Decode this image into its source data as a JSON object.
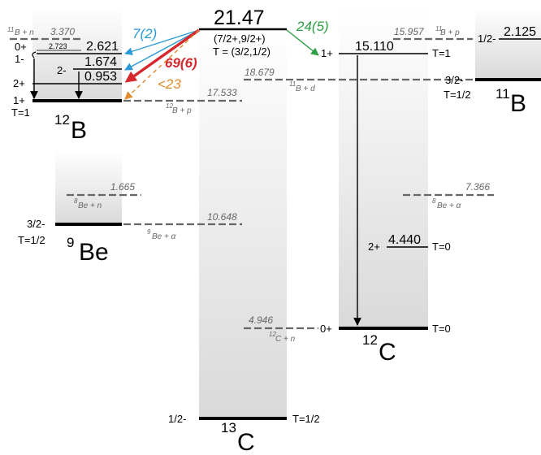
{
  "colors": {
    "blue": "#2a9ad6",
    "red": "#d7282e",
    "orange": "#e08a2c",
    "green": "#2f9e44",
    "dashed": "#666666",
    "level": "#000000",
    "band_top": "#ffffff",
    "band_bottom": "#d9d9d9"
  },
  "icons": {
    "arrowheads": "arrow-head-icon"
  },
  "nuclei": {
    "B12": {
      "mass": "12",
      "symbol": "B"
    },
    "Be9": {
      "mass": "9",
      "symbol": "Be"
    },
    "C13": {
      "mass": "13",
      "symbol": "C"
    },
    "C12": {
      "mass": "12",
      "symbol": "C"
    },
    "B11": {
      "mass": "11",
      "symbol": "B"
    }
  },
  "b12": {
    "thr_n_energy": "3.370",
    "thr_n_label": "B + n",
    "thr_n_mass": "11",
    "level_0p_spin": "0+",
    "level_0p_energy": "2.621",
    "level_2723_energy": "2.723",
    "level_1m_spin": "1-",
    "level_2m_spin": "2-",
    "level_2m_energy": "1.674",
    "level_2p_spin": "2+",
    "level_2p_energy": "0.953",
    "ground_spin": "1+",
    "ground_t": "T=1",
    "thr_p_energy": "17.533",
    "thr_p_label": "B + p",
    "thr_p_mass": "12"
  },
  "c13": {
    "resonance_energy": "21.47",
    "resonance_spin": "(7/2+,9/2+)",
    "resonance_t": "T = (3/2,1/2)",
    "thr_d_energy": "18.679",
    "thr_d_label": "B + d",
    "thr_d_mass": "11",
    "thr_alpha_energy": "10.648",
    "thr_alpha_label": "Be + α",
    "thr_alpha_mass": "9",
    "thr_n_energy": "4.946",
    "thr_n_label": "C + n",
    "thr_n_mass": "12",
    "ground_spin": "1/2-",
    "ground_t": "T=1/2"
  },
  "be9": {
    "thr_n_energy": "1.665",
    "thr_n_label": "Be + n",
    "thr_n_mass": "8",
    "ground_spin": "3/2-",
    "ground_t": "T=1/2"
  },
  "c12": {
    "thr_p_energy": "15.957",
    "thr_p_label": "B + p",
    "thr_p_mass": "11",
    "level_15_spin": "1+",
    "level_15_energy": "15.110",
    "level_15_t": "T=1",
    "thr_alpha_energy": "7.366",
    "thr_alpha_label": "Be + α",
    "thr_alpha_mass": "8",
    "level_2p_spin": "2+",
    "level_2p_energy": "4.440",
    "level_2p_t": "T=0",
    "ground_spin": "0+",
    "ground_t": "T=0"
  },
  "b11": {
    "level_spin": "1/2-",
    "level_energy": "2.125",
    "ground_spin": "3/2-",
    "ground_t": "T=1/2"
  },
  "rates": {
    "blue": "7(2)",
    "red": "69(6)",
    "orange": "<23",
    "green": "24(5)"
  }
}
